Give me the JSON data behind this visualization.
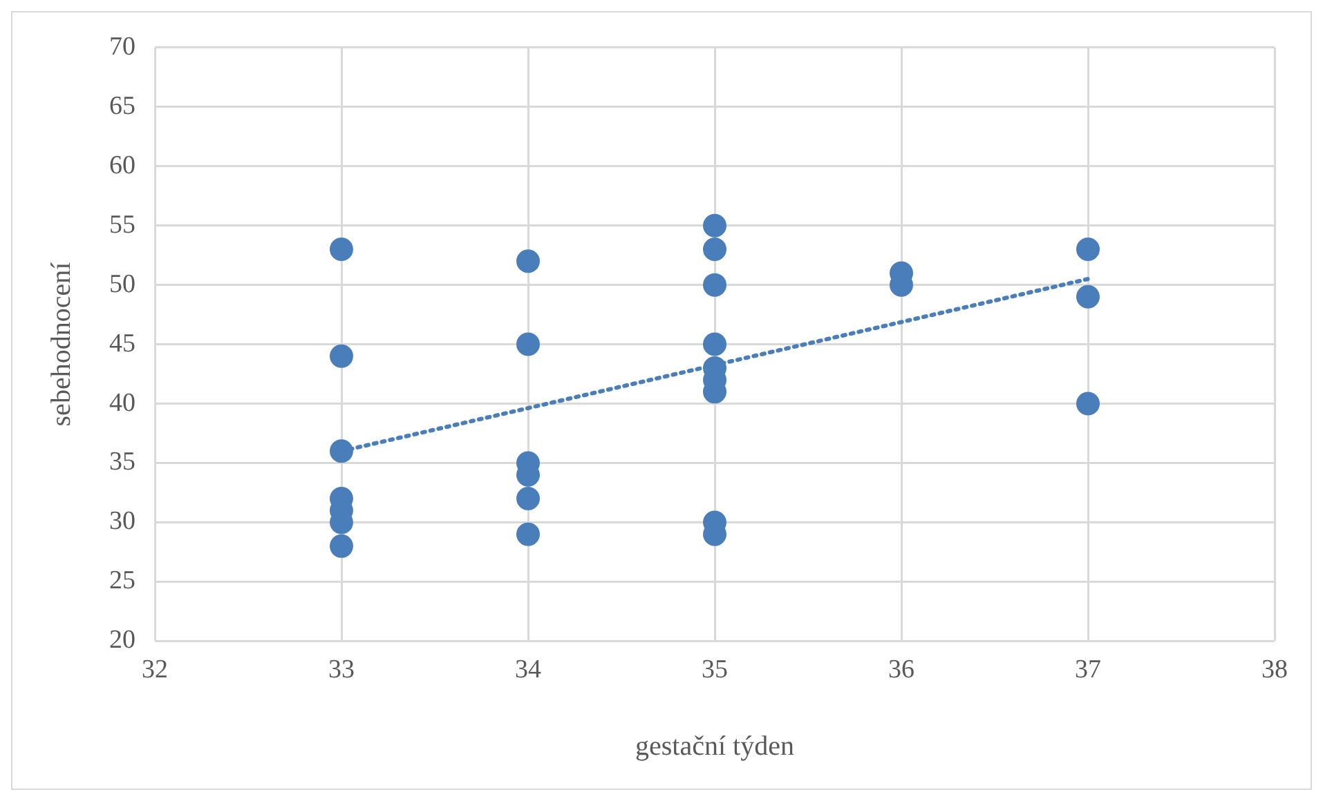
{
  "chart_data": {
    "type": "scatter",
    "xlabel": "gestační týden",
    "ylabel": "sebehodnocení",
    "xlim": [
      32,
      38
    ],
    "xticks": [
      32,
      33,
      34,
      35,
      36,
      37,
      38
    ],
    "ylim": [
      20,
      70
    ],
    "yticks": [
      20,
      25,
      30,
      35,
      40,
      45,
      50,
      55,
      60,
      65,
      70
    ],
    "grid": true,
    "legend": false,
    "marker": "circle",
    "series": [
      {
        "color": "#4a7ebb",
        "x": [
          33,
          33,
          33,
          33,
          33,
          33,
          33,
          34,
          34,
          34,
          34,
          34,
          34,
          35,
          35,
          35,
          35,
          35,
          35,
          35,
          35,
          35,
          36,
          36,
          37,
          37,
          37
        ],
        "values": [
          53,
          44,
          36,
          32,
          31,
          30,
          28,
          52,
          45,
          35,
          34,
          32,
          29,
          55,
          53,
          50,
          45,
          43,
          42,
          41,
          30,
          29,
          51,
          50,
          53,
          49,
          40
        ]
      },
      {
        "type": "line",
        "color": "#4a7ebb",
        "line_style": "dotted",
        "marker": "none",
        "x": [
          33,
          37
        ],
        "values": [
          36,
          50.5
        ]
      }
    ]
  }
}
